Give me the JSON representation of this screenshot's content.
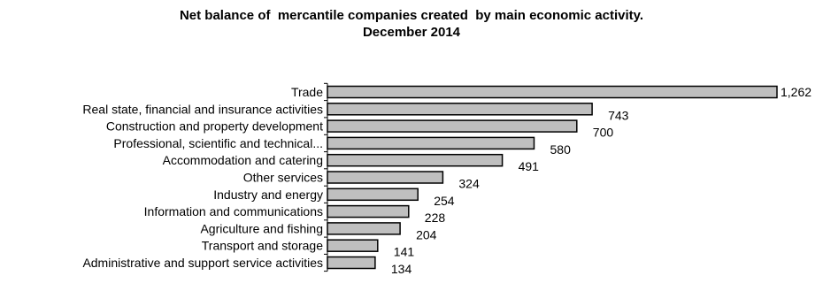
{
  "chart_data": {
    "type": "bar",
    "orientation": "horizontal",
    "title": "Net balance of  mercantile companies created  by main economic activity.",
    "subtitle": "December 2014",
    "categories": [
      "Trade",
      "Real state, financial and insurance activities",
      "Construction and property development",
      "Professional, scientific and technical...",
      "Accommodation and catering",
      "Other services",
      "Industry and energy",
      "Information and communications",
      "Agriculture and fishing",
      "Transport and storage",
      "Administrative and support service activities"
    ],
    "values": [
      1262,
      743,
      700,
      580,
      491,
      324,
      254,
      228,
      204,
      141,
      134
    ],
    "value_labels": [
      "1,262",
      "743",
      "700",
      "580",
      "491",
      "324",
      "254",
      "228",
      "204",
      "141",
      "134"
    ],
    "xlim": [
      0,
      1300
    ],
    "bar_color": "#bfbfbf",
    "grid": false,
    "legend": "none"
  }
}
